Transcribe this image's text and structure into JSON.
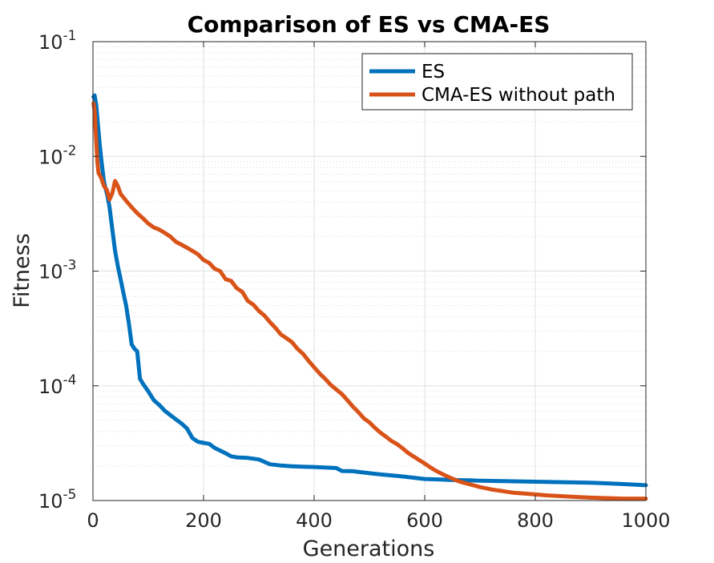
{
  "chart_data": {
    "type": "line",
    "title": "Comparison of ES vs CMA-ES",
    "xlabel": "Generations",
    "ylabel": "Fitness",
    "xlim": [
      0,
      1000
    ],
    "ylim": [
      1e-05,
      0.1
    ],
    "yscale": "log",
    "grid": true,
    "minor_grid": true,
    "legend_position": "top-right",
    "x_ticks": [
      {
        "value": 0,
        "label": "0"
      },
      {
        "value": 200,
        "label": "200"
      },
      {
        "value": 400,
        "label": "400"
      },
      {
        "value": 600,
        "label": "600"
      },
      {
        "value": 800,
        "label": "800"
      },
      {
        "value": 1000,
        "label": "1000"
      }
    ],
    "y_ticks": [
      {
        "value": 1e-05,
        "base": "10",
        "exp": "-5"
      },
      {
        "value": 0.0001,
        "base": "10",
        "exp": "-4"
      },
      {
        "value": 0.001,
        "base": "10",
        "exp": "-3"
      },
      {
        "value": 0.01,
        "base": "10",
        "exp": "-2"
      },
      {
        "value": 0.1,
        "base": "10",
        "exp": "-1"
      }
    ],
    "series": [
      {
        "name": "ES",
        "color": "#0072BD",
        "x": [
          1,
          3,
          6,
          9,
          12,
          15,
          18,
          20,
          23,
          26,
          30,
          35,
          40,
          45,
          50,
          55,
          60,
          65,
          70,
          75,
          80,
          85,
          90,
          100,
          110,
          120,
          130,
          140,
          150,
          160,
          170,
          180,
          190,
          200,
          210,
          220,
          240,
          250,
          260,
          280,
          300,
          320,
          340,
          360,
          380,
          400,
          420,
          440,
          450,
          470,
          500,
          520,
          550,
          580,
          600,
          620,
          650,
          680,
          700,
          730,
          760,
          800,
          830,
          860,
          900,
          950,
          1000
        ],
        "y": [
          0.033,
          0.034,
          0.028,
          0.019,
          0.013,
          0.0095,
          0.0072,
          0.006,
          0.0052,
          0.0046,
          0.0036,
          0.0023,
          0.0015,
          0.0011,
          0.00085,
          0.00065,
          0.0005,
          0.00035,
          0.00023,
          0.00021,
          0.0002,
          0.000115,
          0.000105,
          8.95e-05,
          7.5e-05,
          6.8e-05,
          6.05e-05,
          5.55e-05,
          5.1e-05,
          4.7e-05,
          4.25e-05,
          3.5e-05,
          3.25e-05,
          3.18e-05,
          3.12e-05,
          2.88e-05,
          2.58e-05,
          2.43e-05,
          2.38e-05,
          2.35e-05,
          2.28e-05,
          2.07e-05,
          2.02e-05,
          1.99e-05,
          1.97e-05,
          1.96e-05,
          1.94e-05,
          1.92e-05,
          1.81e-05,
          1.8e-05,
          1.73e-05,
          1.69e-05,
          1.64e-05,
          1.58e-05,
          1.54e-05,
          1.53e-05,
          1.51e-05,
          1.5e-05,
          1.49e-05,
          1.48e-05,
          1.47e-05,
          1.46e-05,
          1.45e-05,
          1.44e-05,
          1.43e-05,
          1.4e-05,
          1.36e-05
        ]
      },
      {
        "name": "CMA-ES without path",
        "color": "#D95319",
        "x": [
          1,
          3,
          5,
          8,
          10,
          15,
          20,
          25,
          30,
          35,
          40,
          45,
          50,
          55,
          60,
          70,
          80,
          90,
          100,
          110,
          120,
          130,
          140,
          150,
          160,
          170,
          180,
          190,
          200,
          210,
          220,
          230,
          240,
          250,
          260,
          270,
          280,
          290,
          300,
          310,
          320,
          330,
          340,
          350,
          360,
          370,
          380,
          390,
          400,
          410,
          420,
          430,
          440,
          450,
          460,
          470,
          480,
          490,
          500,
          510,
          520,
          530,
          540,
          550,
          560,
          570,
          580,
          590,
          600,
          610,
          620,
          630,
          640,
          650,
          660,
          670,
          680,
          690,
          700,
          710,
          720,
          730,
          740,
          750,
          760,
          780,
          800,
          820,
          850,
          880,
          900,
          930,
          960,
          1000
        ],
        "y": [
          0.029,
          0.025,
          0.016,
          0.009,
          0.0072,
          0.0065,
          0.0055,
          0.0051,
          0.0042,
          0.0048,
          0.0061,
          0.0055,
          0.0047,
          0.0044,
          0.0041,
          0.0036,
          0.0032,
          0.0029,
          0.0026,
          0.0024,
          0.0023,
          0.00215,
          0.002,
          0.0018,
          0.0017,
          0.0016,
          0.0015,
          0.0014,
          0.00125,
          0.00118,
          0.00105,
          0.001,
          0.00085,
          0.00082,
          0.00071,
          0.00066,
          0.00055,
          0.00051,
          0.00045,
          0.00041,
          0.00036,
          0.00032,
          0.00028,
          0.00026,
          0.00024,
          0.00021,
          0.00019,
          0.000165,
          0.000145,
          0.000128,
          0.000115,
          0.000102,
          9.3e-05,
          8.5e-05,
          7.5e-05,
          6.6e-05,
          5.9e-05,
          5.2e-05,
          4.8e-05,
          4.3e-05,
          3.9e-05,
          3.6e-05,
          3.3e-05,
          3.1e-05,
          2.85e-05,
          2.6e-05,
          2.42e-05,
          2.25e-05,
          2.1e-05,
          1.95e-05,
          1.82e-05,
          1.72e-05,
          1.63e-05,
          1.55e-05,
          1.48e-05,
          1.43e-05,
          1.39e-05,
          1.35e-05,
          1.31e-05,
          1.28e-05,
          1.25e-05,
          1.23e-05,
          1.21e-05,
          1.19e-05,
          1.17e-05,
          1.15e-05,
          1.13e-05,
          1.11e-05,
          1.09e-05,
          1.07e-05,
          1.06e-05,
          1.05e-05,
          1.04e-05,
          1.04e-05
        ]
      }
    ]
  }
}
